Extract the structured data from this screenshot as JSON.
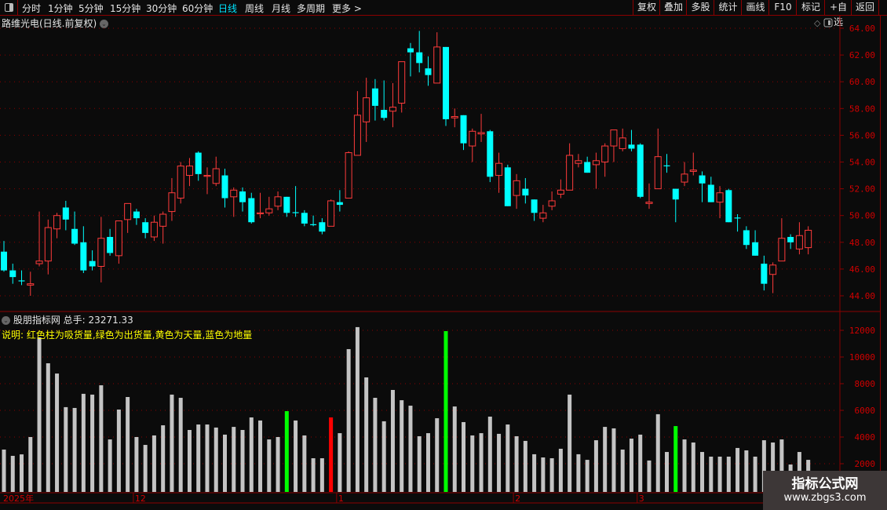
{
  "toolbar": {
    "periods": [
      "分时",
      "1分钟",
      "5分钟",
      "15分钟",
      "30分钟",
      "60分钟",
      "日线",
      "周线",
      "月线",
      "多周期",
      "更多 >"
    ],
    "active_period": "日线",
    "buttons": [
      "复权",
      "叠加",
      "多股",
      "统计",
      "画线",
      "F10",
      "标记",
      "+自选",
      "返回"
    ]
  },
  "price_panel": {
    "title": "路维光电(日线.前复权)",
    "axis_labels": [
      "64.00",
      "62.00",
      "60.00",
      "58.00",
      "56.00",
      "54.00",
      "52.00",
      "50.00",
      "48.00",
      "46.00",
      "44.00"
    ]
  },
  "volume_panel": {
    "title": "股朋指标网",
    "total_label": "总手:",
    "total_value": "23271.33",
    "description": "说明: 红色柱为吸货量,绿色为出货量,黄色为天量,蓝色为地量",
    "axis_labels": [
      "12000",
      "10000",
      "8000",
      "6000",
      "4000",
      "2000"
    ]
  },
  "date_axis": [
    "2025年",
    "12",
    "1",
    "2",
    "3"
  ],
  "watermark": {
    "line1": "指标公式网",
    "line2": "www.zbgs3.com"
  },
  "colors": {
    "up": "#ff3b3b",
    "down": "#00ffff",
    "volume": "#c4c4c4",
    "absorb": "#ff0000",
    "distribute": "#00ff00",
    "grid": "#8b0000",
    "axis_text": "#d00000"
  },
  "chart_data": {
    "type": "candlestick",
    "price_ylim": [
      43.5,
      64.5
    ],
    "ohlc": [
      [
        47.3,
        48.1,
        45.8,
        45.9
      ],
      [
        45.9,
        46.4,
        44.9,
        45.4
      ],
      [
        45.15,
        45.9,
        44.8,
        45.1
      ],
      [
        44.8,
        45.8,
        44.0,
        44.9
      ],
      [
        46.4,
        50.3,
        46.2,
        46.6
      ],
      [
        46.6,
        49.7,
        45.6,
        49.1
      ],
      [
        49.0,
        50.2,
        48.3,
        50.0
      ],
      [
        50.6,
        51.1,
        48.9,
        49.7
      ],
      [
        49.0,
        50.3,
        47.8,
        47.9
      ],
      [
        48.0,
        49.2,
        45.7,
        45.9
      ],
      [
        46.6,
        47.4,
        45.9,
        46.2
      ],
      [
        46.2,
        49.9,
        45.0,
        48.3
      ],
      [
        48.4,
        49.0,
        47.0,
        47.2
      ],
      [
        47.0,
        49.6,
        46.4,
        49.6
      ],
      [
        49.7,
        50.9,
        48.7,
        50.9
      ],
      [
        50.3,
        50.5,
        49.3,
        49.8
      ],
      [
        49.5,
        49.8,
        48.3,
        48.7
      ],
      [
        48.4,
        50.0,
        48.1,
        49.5
      ],
      [
        49.2,
        50.3,
        47.9,
        50.1
      ],
      [
        50.3,
        52.8,
        49.6,
        51.7
      ],
      [
        51.3,
        54.0,
        50.9,
        53.7
      ],
      [
        53.0,
        54.3,
        52.2,
        53.7
      ],
      [
        54.7,
        54.8,
        52.6,
        53.1
      ],
      [
        52.95,
        53.6,
        51.6,
        53.0
      ],
      [
        52.4,
        54.4,
        52.2,
        53.5
      ],
      [
        53.0,
        53.5,
        50.6,
        51.3
      ],
      [
        51.4,
        52.1,
        49.9,
        51.9
      ],
      [
        51.8,
        52.1,
        50.3,
        51.0
      ],
      [
        51.3,
        51.7,
        49.4,
        49.5
      ],
      [
        50.15,
        51.7,
        49.8,
        50.2
      ],
      [
        50.2,
        51.4,
        50.0,
        50.5
      ],
      [
        50.7,
        51.8,
        50.4,
        51.4
      ],
      [
        51.4,
        51.4,
        49.9,
        50.2
      ],
      [
        50.25,
        52.2,
        49.9,
        50.2
      ],
      [
        50.2,
        50.4,
        49.2,
        49.4
      ],
      [
        49.35,
        50.0,
        49.2,
        49.3
      ],
      [
        49.5,
        49.8,
        48.6,
        48.8
      ],
      [
        49.2,
        51.2,
        49.2,
        51.1
      ],
      [
        51.0,
        51.9,
        50.3,
        50.8
      ],
      [
        51.3,
        54.8,
        51.3,
        54.7
      ],
      [
        54.5,
        59.3,
        54.5,
        57.5
      ],
      [
        57.0,
        60.3,
        55.5,
        58.8
      ],
      [
        59.5,
        60.2,
        57.1,
        58.2
      ],
      [
        57.9,
        60.1,
        57.1,
        57.3
      ],
      [
        57.8,
        59.9,
        56.6,
        58.1
      ],
      [
        58.4,
        61.5,
        57.7,
        61.5
      ],
      [
        62.5,
        62.9,
        60.4,
        62.2
      ],
      [
        62.2,
        63.8,
        60.7,
        61.4
      ],
      [
        61.0,
        61.9,
        59.7,
        60.5
      ],
      [
        59.9,
        63.7,
        59.9,
        62.6
      ],
      [
        62.6,
        62.6,
        56.7,
        57.2
      ],
      [
        57.3,
        58.0,
        56.6,
        57.4
      ],
      [
        57.5,
        57.5,
        54.9,
        55.4
      ],
      [
        55.2,
        56.5,
        54.0,
        56.3
      ],
      [
        56.1,
        57.6,
        55.5,
        56.2
      ],
      [
        56.3,
        56.4,
        52.5,
        52.9
      ],
      [
        53.0,
        54.7,
        51.7,
        53.9
      ],
      [
        53.6,
        53.8,
        50.7,
        50.7
      ],
      [
        51.5,
        53.1,
        50.5,
        52.6
      ],
      [
        52.0,
        52.8,
        50.9,
        51.5
      ],
      [
        51.2,
        51.2,
        49.6,
        50.2
      ],
      [
        49.8,
        50.8,
        49.5,
        50.2
      ],
      [
        50.7,
        51.8,
        50.4,
        51.1
      ],
      [
        51.6,
        52.7,
        51.3,
        51.9
      ],
      [
        51.9,
        55.4,
        51.9,
        54.5
      ],
      [
        53.9,
        54.6,
        53.6,
        54.1
      ],
      [
        54.0,
        54.4,
        53.2,
        53.2
      ],
      [
        53.8,
        54.7,
        52.0,
        54.1
      ],
      [
        54.0,
        55.4,
        52.9,
        55.2
      ],
      [
        55.2,
        56.4,
        54.0,
        56.4
      ],
      [
        55.0,
        56.5,
        54.8,
        55.8
      ],
      [
        55.3,
        56.4,
        54.8,
        55.0
      ],
      [
        55.3,
        55.4,
        51.3,
        51.4
      ],
      [
        50.9,
        52.4,
        50.5,
        51.0
      ],
      [
        52.0,
        56.5,
        52.0,
        54.4
      ],
      [
        53.75,
        54.6,
        53.2,
        53.7
      ],
      [
        52.0,
        52.0,
        49.5,
        51.2
      ],
      [
        52.5,
        54.0,
        52.2,
        53.1
      ],
      [
        53.3,
        54.7,
        53.0,
        53.4
      ],
      [
        53.0,
        53.3,
        51.0,
        52.4
      ],
      [
        52.3,
        52.9,
        51.0,
        51.0
      ],
      [
        51.0,
        52.2,
        49.8,
        51.7
      ],
      [
        51.9,
        52.0,
        49.5,
        49.5
      ],
      [
        49.85,
        50.1,
        48.8,
        49.8
      ],
      [
        48.9,
        49.2,
        47.5,
        47.8
      ],
      [
        48.0,
        48.9,
        47.0,
        47.0
      ],
      [
        46.4,
        47.0,
        44.4,
        44.9
      ],
      [
        45.6,
        46.5,
        44.2,
        46.3
      ],
      [
        46.6,
        49.8,
        46.6,
        48.3
      ],
      [
        48.4,
        48.6,
        47.5,
        48.0
      ],
      [
        47.5,
        49.5,
        47.1,
        48.5
      ],
      [
        47.6,
        49.2,
        47.1,
        48.9
      ]
    ],
    "volume_ylim": [
      0,
      13000
    ],
    "volume": [
      3060,
      2590,
      2700,
      4000,
      11470,
      9530,
      8760,
      6240,
      6180,
      7240,
      7180,
      7880,
      3820,
      6060,
      7000,
      4000,
      3410,
      4120,
      4880,
      7180,
      6940,
      4530,
      4940,
      4940,
      4710,
      4180,
      4760,
      4530,
      5470,
      5240,
      3820,
      4000,
      5940,
      5240,
      4120,
      2410,
      2410,
      5470,
      4290,
      10590,
      12240,
      8470,
      6940,
      5180,
      7530,
      6760,
      6350,
      4060,
      4290,
      5410,
      11940,
      6290,
      5120,
      4120,
      4290,
      5530,
      4240,
      4940,
      4060,
      3710,
      2710,
      2470,
      2410,
      3120,
      7180,
      2710,
      2290,
      3760,
      4760,
      4650,
      3060,
      3880,
      4180,
      2240,
      5710,
      2880,
      4820,
      3820,
      3590,
      2880,
      2530,
      2530,
      2530,
      3180,
      3000,
      2530,
      3760,
      3590,
      3820,
      1940,
      2880,
      2290
    ],
    "volume_highlights": [
      {
        "bar": 33,
        "kind": "distribute"
      },
      {
        "bar": 38,
        "kind": "absorb"
      },
      {
        "bar": 51,
        "kind": "distribute"
      },
      {
        "bar": 77,
        "kind": "distribute"
      }
    ],
    "month_starts": {
      "12": 15,
      "1": 38,
      "2": 58,
      "3": 72
    }
  }
}
